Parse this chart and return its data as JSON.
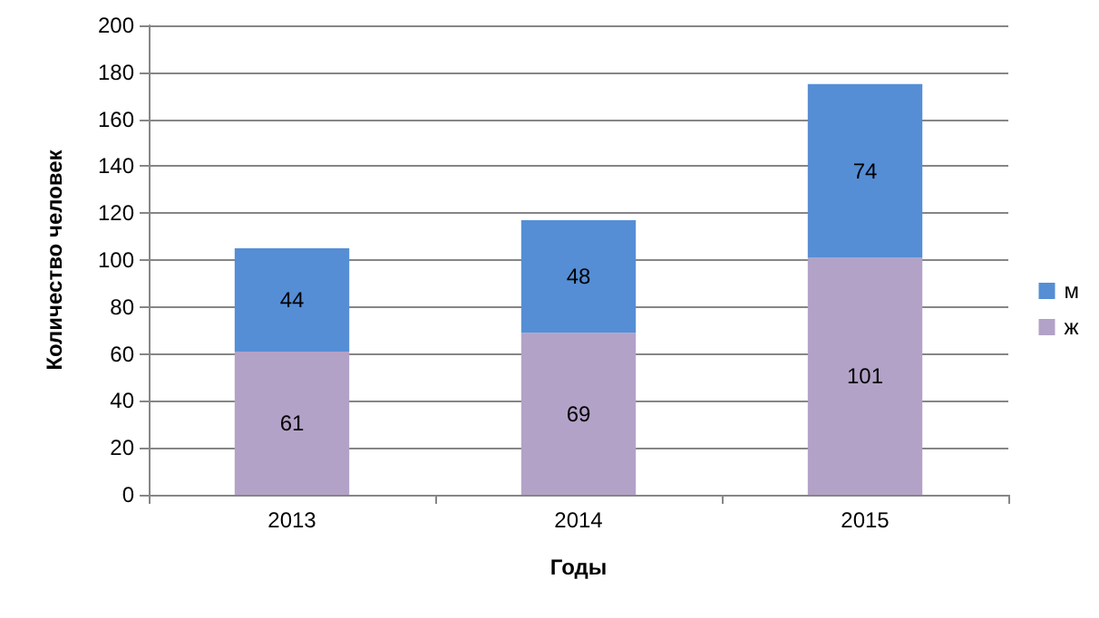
{
  "chart_data": {
    "type": "bar",
    "stacked": true,
    "xlabel": "Годы",
    "ylabel": "Количество человек",
    "categories": [
      "2013",
      "2014",
      "2015"
    ],
    "series": [
      {
        "name": "ж",
        "color": "#b3a2c7",
        "values": [
          61,
          69,
          101
        ]
      },
      {
        "name": "м",
        "color": "#558ed5",
        "values": [
          44,
          48,
          74
        ]
      }
    ],
    "ylim": [
      0,
      200
    ],
    "yticks": [
      0,
      20,
      40,
      60,
      80,
      100,
      120,
      140,
      160,
      180,
      200
    ],
    "grid": "y",
    "legend": "right",
    "data_labels": true
  }
}
